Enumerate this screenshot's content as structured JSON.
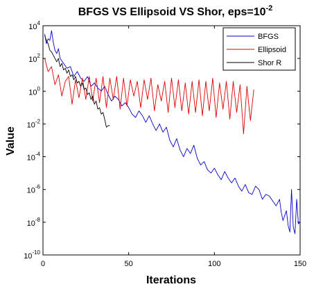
{
  "chart_data": {
    "type": "line",
    "title_main": "BFGS VS Ellipsoid VS Shor, eps=10",
    "title_exp": "-2",
    "xlabel": "Iterations",
    "ylabel": "Value",
    "xlim": [
      0,
      150
    ],
    "ylim_log10": [
      -10,
      4
    ],
    "yscale": "log",
    "grid": false,
    "legend_position": "top-right",
    "x_ticks": [
      0,
      50,
      100,
      150
    ],
    "y_ticks": [
      {
        "base": "10",
        "exp": "-10",
        "log": -10
      },
      {
        "base": "10",
        "exp": "-8",
        "log": -8
      },
      {
        "base": "10",
        "exp": "-6",
        "log": -6
      },
      {
        "base": "10",
        "exp": "-4",
        "log": -4
      },
      {
        "base": "10",
        "exp": "-2",
        "log": -2
      },
      {
        "base": "10",
        "exp": "0",
        "log": 0
      },
      {
        "base": "10",
        "exp": "2",
        "log": 2
      },
      {
        "base": "10",
        "exp": "4",
        "log": 4
      }
    ],
    "series": [
      {
        "name": "BFGS",
        "color": "#0000cc",
        "x": [
          1,
          2,
          3,
          4,
          5,
          6,
          7,
          8,
          9,
          10,
          12,
          14,
          16,
          18,
          20,
          22,
          24,
          26,
          28,
          30,
          32,
          34,
          36,
          38,
          40,
          42,
          44,
          46,
          48,
          50,
          52,
          54,
          56,
          58,
          60,
          62,
          64,
          66,
          68,
          70,
          72,
          74,
          76,
          78,
          80,
          82,
          84,
          86,
          88,
          90,
          92,
          94,
          96,
          98,
          100,
          102,
          104,
          106,
          108,
          110,
          112,
          114,
          116,
          118,
          120,
          122,
          124,
          126,
          128,
          130,
          132,
          134,
          136,
          138,
          139,
          140,
          141,
          142,
          143,
          144,
          145,
          146,
          147,
          148,
          149,
          150
        ],
        "log10y": [
          3.5,
          2.9,
          3.2,
          3.1,
          3.7,
          3.0,
          2.5,
          2.3,
          2.6,
          2.0,
          1.7,
          1.4,
          1.5,
          0.9,
          1.2,
          0.8,
          0.6,
          0.9,
          0.3,
          0.5,
          0.2,
          0.0,
          0.3,
          -0.2,
          -0.6,
          -0.3,
          -0.5,
          -0.9,
          -0.7,
          -1.0,
          -1.4,
          -1.6,
          -1.2,
          -1.5,
          -1.9,
          -1.5,
          -2.0,
          -2.4,
          -2.0,
          -2.5,
          -2.2,
          -3.0,
          -3.4,
          -2.9,
          -3.6,
          -4.0,
          -3.5,
          -3.8,
          -3.3,
          -4.1,
          -4.5,
          -4.3,
          -4.8,
          -5.0,
          -4.7,
          -5.1,
          -5.4,
          -4.9,
          -5.3,
          -5.6,
          -5.3,
          -5.8,
          -6.1,
          -5.7,
          -6.2,
          -6.3,
          -5.8,
          -6.0,
          -6.6,
          -6.3,
          -6.4,
          -6.7,
          -7.0,
          -6.6,
          -7.4,
          -7.9,
          -7.6,
          -7.3,
          -8.2,
          -8.6,
          -6.0,
          -8.3,
          -8.7,
          -6.6,
          -8.1,
          -8.0
        ],
        "x_note": ""
      },
      {
        "name": "Ellipsoid",
        "color": "#dd0000",
        "x": [
          1,
          3,
          5,
          7,
          9,
          11,
          13,
          15,
          17,
          19,
          21,
          23,
          25,
          27,
          29,
          31,
          33,
          35,
          37,
          39,
          41,
          43,
          45,
          47,
          49,
          51,
          53,
          55,
          57,
          59,
          61,
          63,
          65,
          67,
          69,
          71,
          73,
          75,
          77,
          79,
          81,
          83,
          85,
          87,
          89,
          91,
          93,
          95,
          97,
          99,
          101,
          103,
          105,
          107,
          109,
          111,
          113,
          115,
          117,
          119,
          121,
          123
        ],
        "log10y": [
          2.0,
          1.2,
          1.5,
          0.4,
          1.0,
          -0.3,
          0.6,
          0.9,
          -0.8,
          0.7,
          -0.4,
          0.8,
          -0.5,
          0.9,
          -0.6,
          0.8,
          -0.7,
          0.9,
          -1.0,
          0.8,
          -0.5,
          0.9,
          -1.1,
          0.8,
          -0.9,
          0.7,
          -0.3,
          0.6,
          -1.0,
          0.7,
          -0.5,
          0.8,
          -1.2,
          0.4,
          -0.6,
          0.6,
          -1.3,
          0.8,
          -1.0,
          0.7,
          -1.2,
          0.5,
          -1.4,
          0.6,
          -1.3,
          0.7,
          -1.5,
          0.6,
          -1.2,
          0.8,
          -1.6,
          0.5,
          -1.1,
          0.6,
          -1.7,
          0.6,
          -1.3,
          0.4,
          -2.6,
          0.3,
          -1.8,
          0.1
        ],
        "x_note": ""
      },
      {
        "name": "Shor R",
        "color": "#000000",
        "x": [
          1,
          2,
          3,
          4,
          5,
          6,
          7,
          8,
          9,
          10,
          11,
          12,
          13,
          14,
          15,
          16,
          17,
          18,
          19,
          20,
          21,
          22,
          23,
          24,
          25,
          26,
          27,
          28,
          29,
          30,
          31,
          32,
          33,
          34,
          35,
          36,
          37,
          38,
          39
        ],
        "log10y": [
          3.4,
          3.1,
          2.9,
          2.5,
          2.4,
          2.2,
          2.0,
          1.8,
          2.0,
          1.5,
          1.7,
          1.3,
          1.4,
          1.1,
          1.3,
          0.9,
          1.0,
          0.7,
          0.9,
          0.5,
          0.6,
          0.3,
          0.5,
          0.1,
          0.2,
          -0.2,
          -0.1,
          -0.5,
          -0.3,
          -0.8,
          -0.6,
          -1.1,
          -1.0,
          -1.4,
          -1.3,
          -1.7,
          -2.2,
          -2.1,
          -2.1
        ],
        "x_note": ""
      }
    ]
  }
}
